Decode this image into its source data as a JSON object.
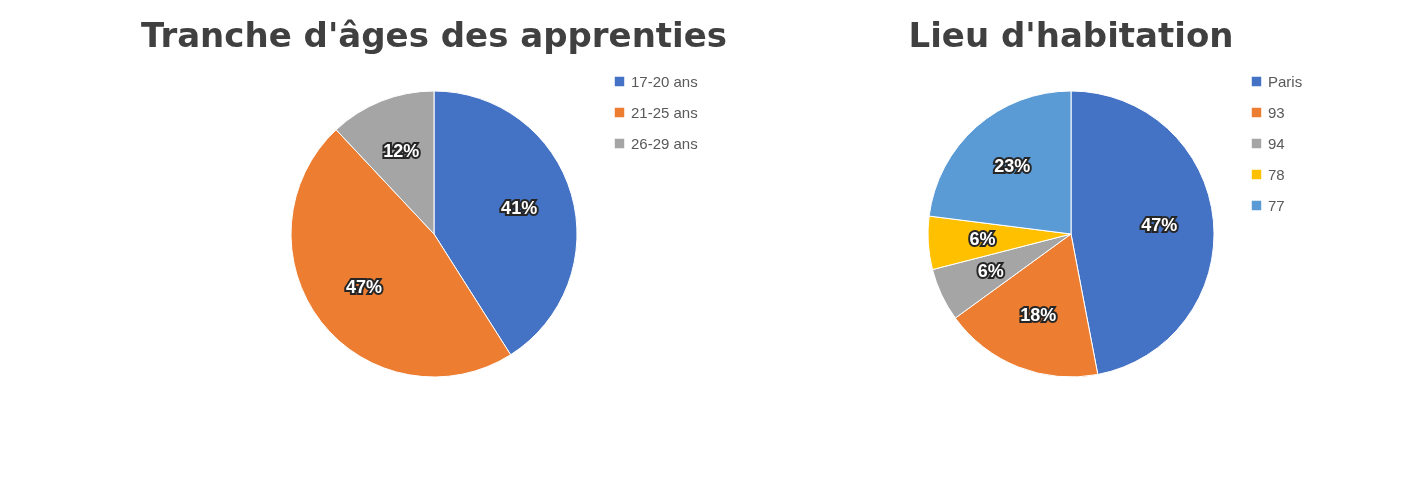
{
  "chart_data": [
    {
      "type": "pie",
      "title": "Tranche d'âges des apprenties",
      "categories": [
        "17-20 ans",
        "21-25 ans",
        "26-29 ans"
      ],
      "values": [
        41,
        47,
        12
      ],
      "colors": [
        "#4472c4",
        "#ed7d31",
        "#a5a5a5"
      ],
      "value_labels": [
        "41%",
        "47%",
        "12%"
      ],
      "legend": "right"
    },
    {
      "type": "pie",
      "title": "Lieu d'habitation",
      "categories": [
        "Paris",
        "93",
        "94",
        "78",
        "77"
      ],
      "values": [
        47,
        18,
        6,
        6,
        23
      ],
      "colors": [
        "#4472c4",
        "#ed7d31",
        "#a5a5a5",
        "#ffc000",
        "#5b9bd5"
      ],
      "value_labels": [
        "47%",
        "18%",
        "6%",
        "6%",
        "23%"
      ],
      "legend": "right"
    }
  ]
}
